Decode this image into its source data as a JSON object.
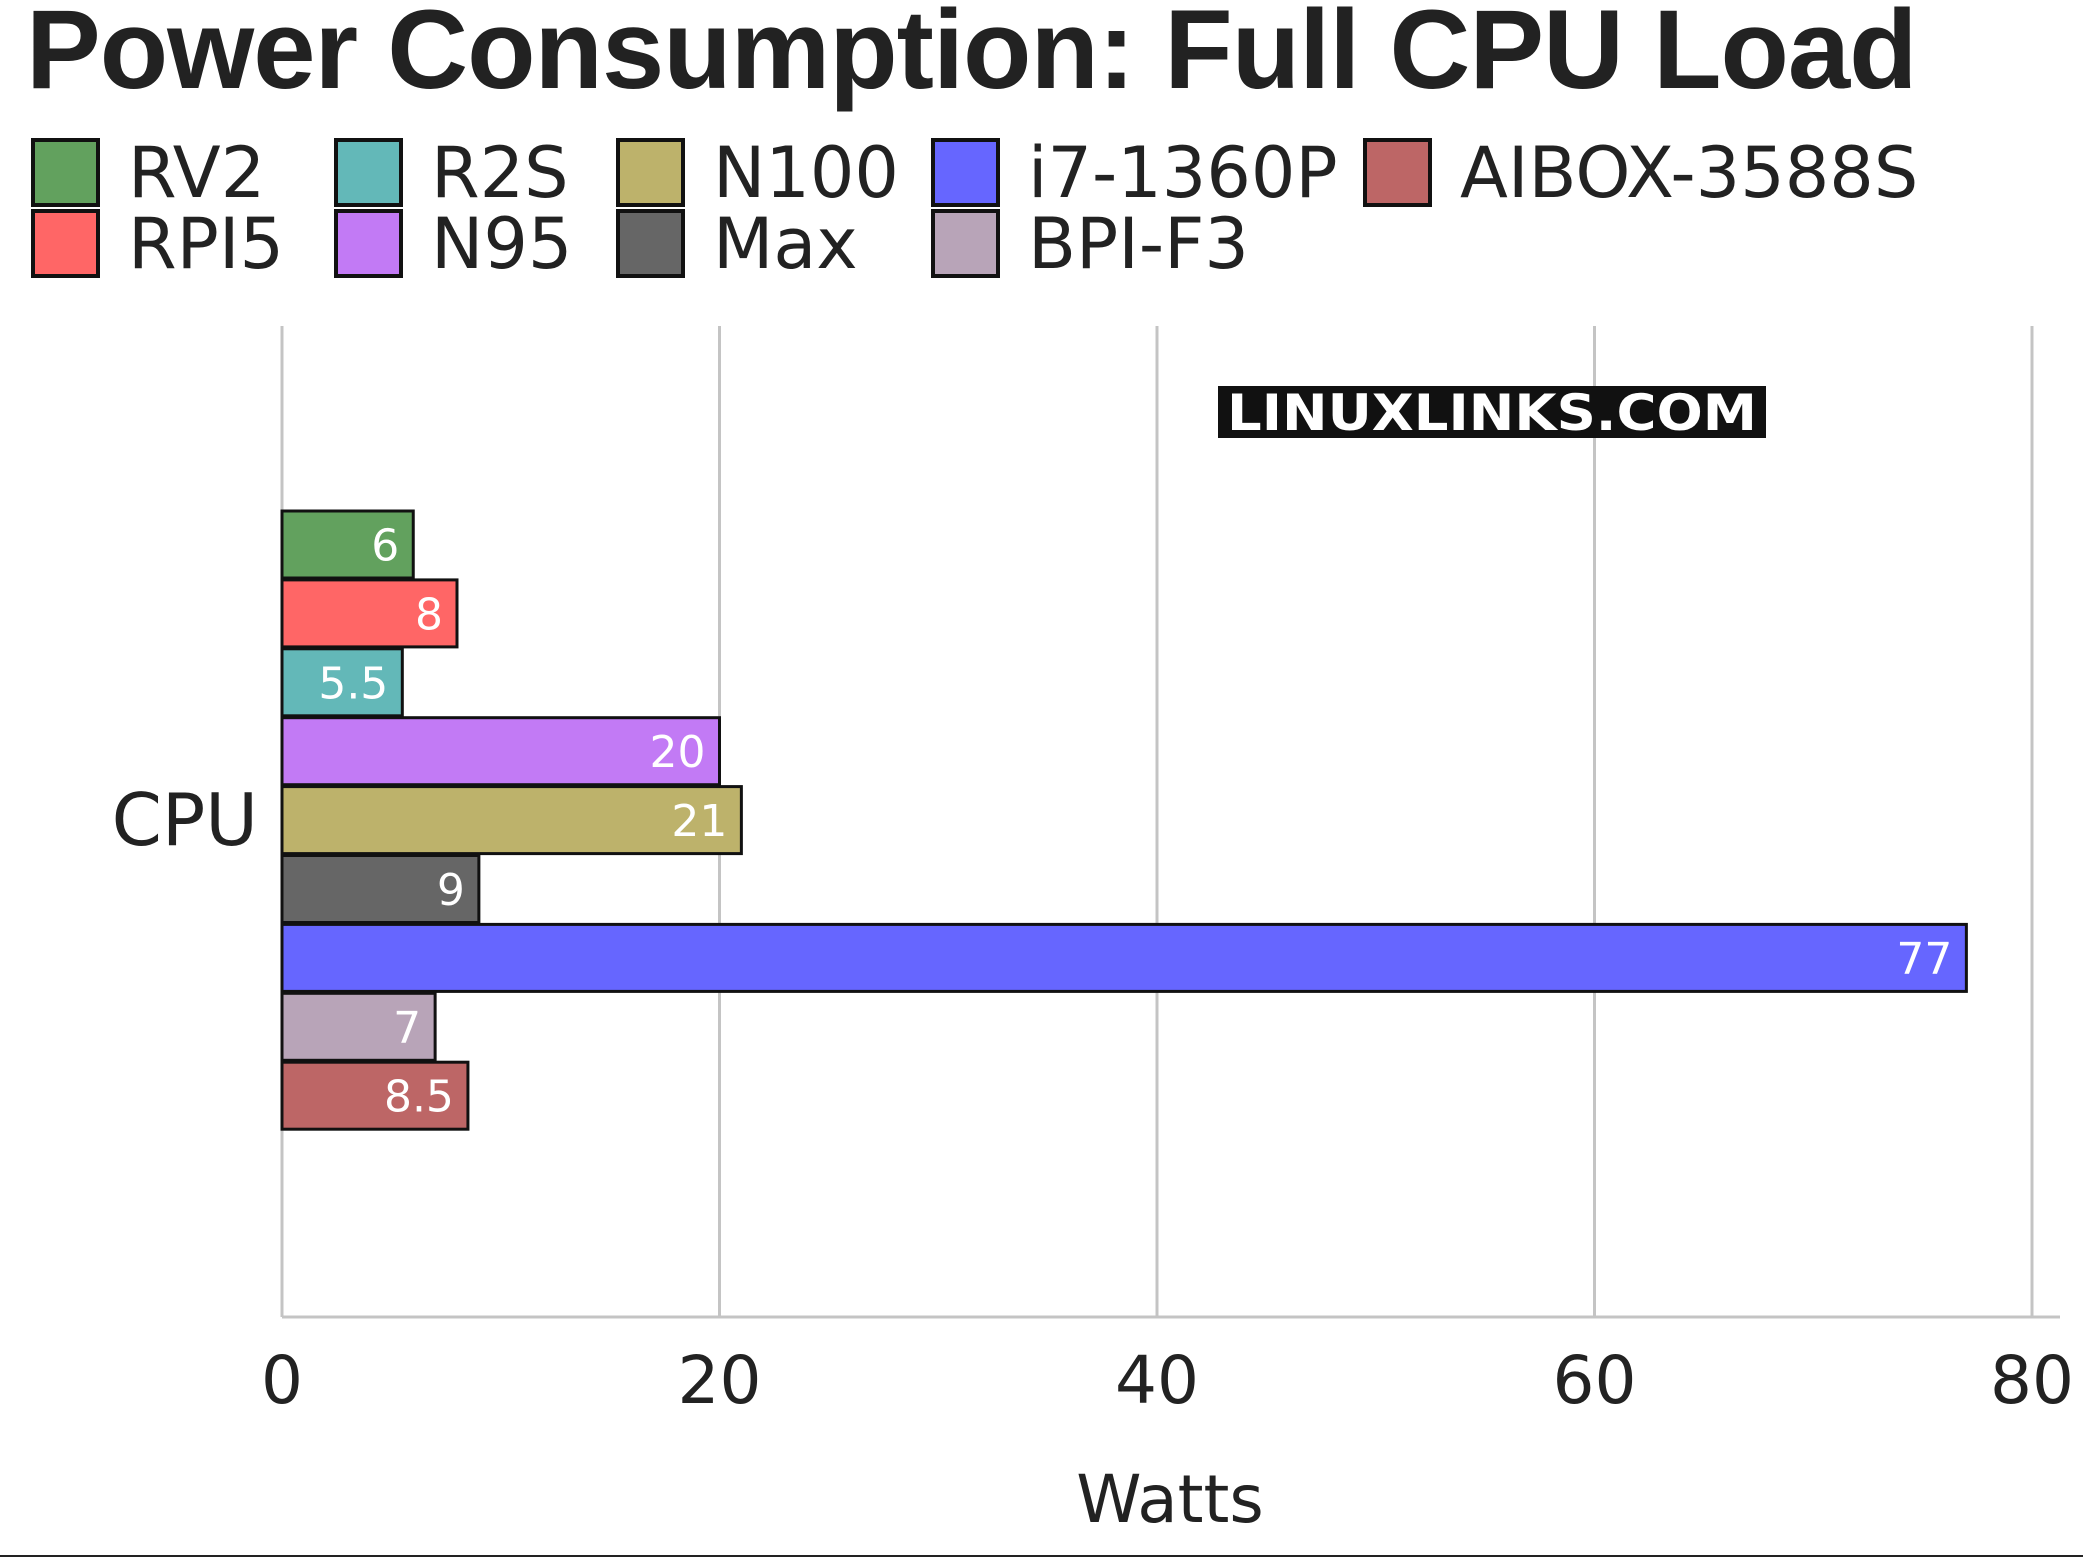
{
  "chart_data": {
    "type": "bar",
    "orientation": "horizontal",
    "title": "Power Consumption: Full CPU Load",
    "watermark": "LINUXLINKS.COM",
    "xlabel": "Watts",
    "ylabel": "",
    "categories": [
      "CPU"
    ],
    "xlim": [
      0,
      80
    ],
    "xticks": [
      0,
      20,
      40,
      60,
      80
    ],
    "grid": true,
    "legend_position": "top",
    "series": [
      {
        "name": "RV2",
        "value": 6,
        "label": "6",
        "color": "#62a15e"
      },
      {
        "name": "RPI5",
        "value": 8,
        "label": "8",
        "color": "#ff6666"
      },
      {
        "name": "R2S",
        "value": 5.5,
        "label": "5.5",
        "color": "#63b8b8"
      },
      {
        "name": "N95",
        "value": 20,
        "label": "20",
        "color": "#c27af5"
      },
      {
        "name": "N100",
        "value": 21,
        "label": "21",
        "color": "#bdb26b"
      },
      {
        "name": "Max",
        "value": 9,
        "label": "9",
        "color": "#666666"
      },
      {
        "name": "i7-1360P",
        "value": 77,
        "label": "77",
        "color": "#6666ff"
      },
      {
        "name": "BPI-F3",
        "value": 7,
        "label": "7",
        "color": "#b8a4b8"
      },
      {
        "name": "AIBOX-3588S",
        "value": 8.5,
        "label": "8.5",
        "color": "#bd6666"
      }
    ],
    "legend_order": [
      "RV2",
      "R2S",
      "N100",
      "i7-1360P",
      "AIBOX-3588S",
      "RPI5",
      "N95",
      "Max",
      "BPI-F3"
    ]
  }
}
